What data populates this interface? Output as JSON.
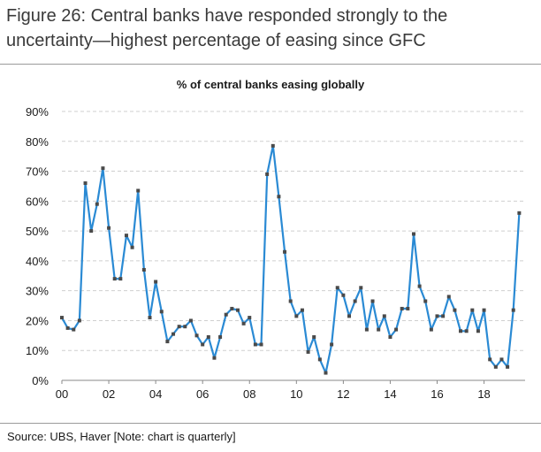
{
  "figure": {
    "title": "Figure 26: Central banks have responded strongly to the uncertainty—highest percentage of easing since GFC",
    "source": "Source:  UBS, Haver [Note: chart is quarterly]"
  },
  "chart_data": {
    "type": "line",
    "title": "% of central banks easing globally",
    "xlabel": "",
    "ylabel": "",
    "x_ticks": [
      "00",
      "02",
      "04",
      "06",
      "08",
      "10",
      "12",
      "14",
      "16",
      "18"
    ],
    "y_ticks": [
      "0%",
      "10%",
      "20%",
      "30%",
      "40%",
      "50%",
      "60%",
      "70%",
      "80%",
      "90%"
    ],
    "ylim": [
      0,
      90
    ],
    "xlim": [
      2000.0,
      2019.75
    ],
    "grid": "horizontal dashed",
    "marker": "square",
    "line_color": "#2a8ad4",
    "marker_color": "#4a4a4a",
    "x_start": 2000.0,
    "x_step": 0.25,
    "values": [
      21,
      17.5,
      17,
      20,
      66,
      50,
      59,
      71,
      51,
      34,
      34,
      48.5,
      44.5,
      63.5,
      37,
      21,
      33,
      23,
      13,
      15.5,
      18,
      18,
      20,
      15,
      12,
      14.5,
      7.5,
      14.5,
      22,
      24,
      23.5,
      19,
      21,
      12,
      12,
      69,
      78.5,
      61.5,
      43,
      26.5,
      21.5,
      23.5,
      9.5,
      14.5,
      7,
      2.5,
      12,
      31,
      28.5,
      21.5,
      26.5,
      31,
      17,
      26.5,
      17,
      21.5,
      14.5,
      17,
      24,
      24,
      49,
      31.5,
      26.5,
      17,
      21.5,
      21.5,
      28,
      23.5,
      16.5,
      16.5,
      23.5,
      16.5,
      23.5,
      7,
      4.5,
      7,
      4.5,
      23.5,
      56
    ]
  }
}
